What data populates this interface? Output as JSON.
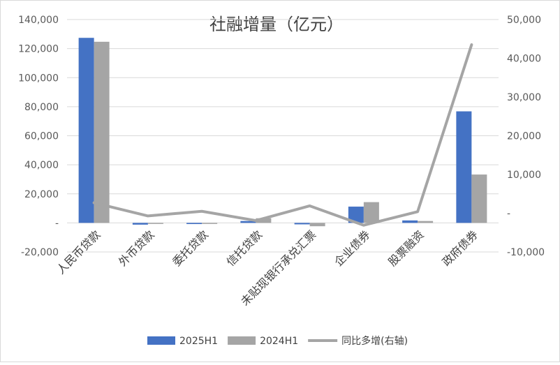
{
  "chart_data": {
    "type": "bar",
    "title": "社融增量（亿元）",
    "categories": [
      "人民币贷款",
      "外币贷款",
      "委托贷款",
      "信托贷款",
      "未贴现银行承兑汇票",
      "企业债券",
      "股票融资",
      "政府债券"
    ],
    "series": [
      {
        "name": "2025H1",
        "type": "bar",
        "axis": "left",
        "color": "#4472c4",
        "values": [
          127400,
          -1200,
          -800,
          1300,
          -1000,
          11200,
          1700,
          76800
        ]
      },
      {
        "name": "2024H1",
        "type": "bar",
        "axis": "left",
        "color": "#a5a5a5",
        "values": [
          124700,
          -500,
          -300,
          3200,
          -2300,
          14300,
          1300,
          33300
        ]
      },
      {
        "name": "同比多增(右轴)",
        "type": "line",
        "axis": "right",
        "color": "#a5a5a5",
        "values": [
          2700,
          -700,
          500,
          -1900,
          1900,
          -3100,
          400,
          43500
        ]
      }
    ],
    "y_left": {
      "min": -20000,
      "max": 140000,
      "step": 20000,
      "tick_labels": [
        "-20,000",
        "-",
        "20,000",
        "40,000",
        "60,000",
        "80,000",
        "100,000",
        "120,000",
        "140,000"
      ]
    },
    "y_right": {
      "min": -10000,
      "max": 50000,
      "step": 10000,
      "tick_labels": [
        "-10,000",
        "-",
        "10,000",
        "20,000",
        "30,000",
        "40,000",
        "50,000"
      ]
    },
    "grid": true,
    "legend_position": "bottom"
  }
}
